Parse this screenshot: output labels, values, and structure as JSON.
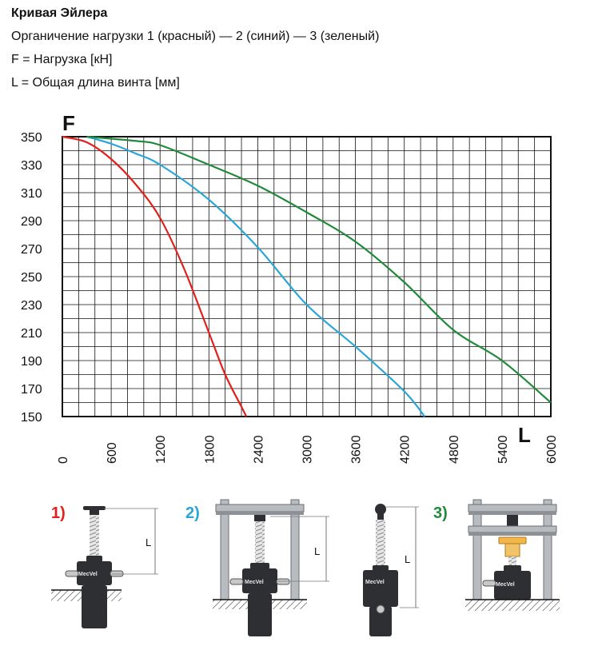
{
  "header": {
    "title": "Кривая Эйлера",
    "line1": "Органичение нагрузки 1 (красный) — 2 (синий) — 3 (зеленый)",
    "line2": "F = Нагрузка [кН]",
    "line3": "L = Общая длина винта [мм]"
  },
  "colors": {
    "red": "#e0201b",
    "blue": "#2aa6d6",
    "green": "#218a3a",
    "grid": "#111111"
  },
  "chart_data": {
    "type": "line",
    "xlabel": "L",
    "ylabel": "F",
    "xlim": [
      0,
      6000
    ],
    "ylim": [
      150,
      350
    ],
    "x_ticks": [
      "0",
      "600",
      "1200",
      "1800",
      "2400",
      "3000",
      "3600",
      "4200",
      "4800",
      "5400",
      "6000"
    ],
    "y_ticks": [
      "350",
      "330",
      "310",
      "290",
      "270",
      "250",
      "230",
      "210",
      "190",
      "170",
      "150"
    ],
    "grid": true,
    "series": [
      {
        "color": "#e0201b",
        "x": [
          0,
          300,
          600,
          900,
          1200,
          1500,
          1800,
          2000,
          2200,
          2260
        ],
        "y": [
          350,
          346,
          334,
          316,
          292,
          255,
          210,
          180,
          157,
          150
        ]
      },
      {
        "color": "#2aa6d6",
        "x": [
          300,
          600,
          900,
          1200,
          1800,
          2400,
          3000,
          3600,
          4200,
          4450
        ],
        "y": [
          350,
          345,
          338,
          330,
          305,
          271,
          230,
          200,
          168,
          150
        ]
      },
      {
        "color": "#218a3a",
        "x": [
          300,
          900,
          1200,
          1800,
          2400,
          3000,
          3600,
          4200,
          4800,
          5400,
          6000
        ],
        "y": [
          350,
          347,
          344,
          330,
          315,
          296,
          275,
          246,
          212,
          190,
          160
        ]
      }
    ]
  },
  "diagrams": [
    {
      "label": "1)",
      "color": "#e0201b",
      "dim": "L",
      "brand": "MecVel"
    },
    {
      "label": "2)",
      "color": "#2aa6d6",
      "dim": "L",
      "brand": "MecVel"
    },
    {
      "label": "",
      "color": "#2aa6d6",
      "dim": "L",
      "brand": "MecVel"
    },
    {
      "label": "3)",
      "color": "#218a3a",
      "dim": "",
      "brand": "MecVel"
    }
  ]
}
